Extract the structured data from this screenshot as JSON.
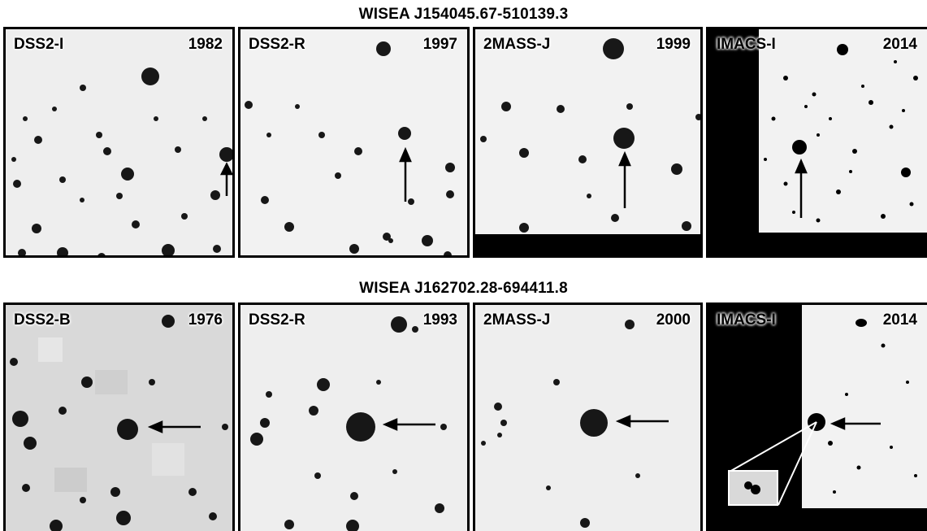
{
  "rows": [
    {
      "title": "WISEA J154045.67-510139.3",
      "panels": [
        {
          "survey": "DSS2-I",
          "year": "1982"
        },
        {
          "survey": "DSS2-R",
          "year": "1997"
        },
        {
          "survey": "2MASS-J",
          "year": "1999"
        },
        {
          "survey": "IMACS-I",
          "year": "2014"
        }
      ]
    },
    {
      "title": "WISEA J162702.28-694411.8",
      "panels": [
        {
          "survey": "DSS2-B",
          "year": "1976"
        },
        {
          "survey": "DSS2-R",
          "year": "1993"
        },
        {
          "survey": "2MASS-J",
          "year": "2000"
        },
        {
          "survey": "IMACS-I",
          "year": "2014"
        }
      ]
    }
  ],
  "colors": {
    "background": "#f2f2f2",
    "stars": "#000000",
    "mask": "#000000"
  }
}
